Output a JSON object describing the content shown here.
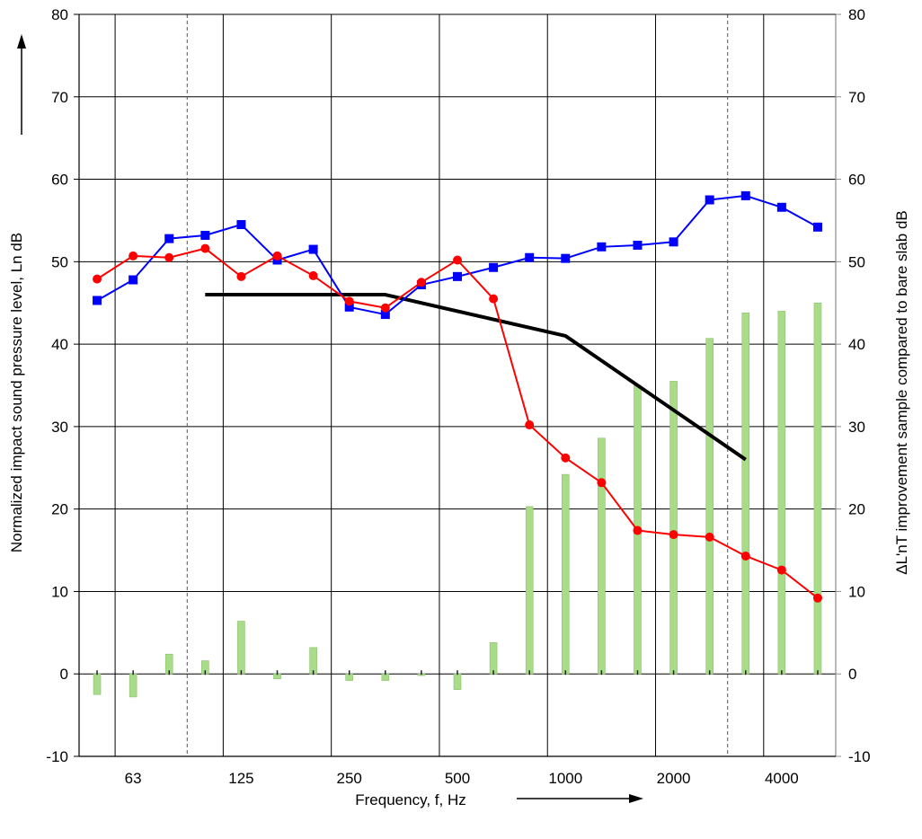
{
  "chart_data": {
    "type": "line+bar",
    "categories": [
      "50",
      "63",
      "80",
      "100",
      "125",
      "160",
      "200",
      "250",
      "315",
      "400",
      "500",
      "630",
      "800",
      "1000",
      "1250",
      "1600",
      "2000",
      "2500",
      "3150",
      "4000",
      "5000"
    ],
    "x_tick_labels": [
      "63",
      "125",
      "250",
      "500",
      "1000",
      "2000",
      "4000"
    ],
    "xlabel": "Frequency, f, Hz",
    "ylabel_left": "Normalized impact sound pressure level, Ln dB",
    "ylabel_right": "ΔL'nT improvement sample compared to bare slab dB",
    "ylim": [
      -10,
      80
    ],
    "y_ticks": [
      -10,
      0,
      10,
      20,
      30,
      40,
      50,
      60,
      70,
      80
    ],
    "grid": true,
    "series": [
      {
        "kind": "line",
        "color": "#0000ff",
        "marker": "square",
        "values": [
          45.3,
          47.8,
          52.8,
          53.2,
          54.5,
          50.2,
          51.5,
          44.5,
          43.6,
          47.2,
          48.2,
          49.3,
          50.5,
          50.4,
          51.8,
          52,
          52.4,
          57.5,
          58,
          56.6,
          54.2
        ]
      },
      {
        "kind": "line",
        "color": "#ff0000",
        "marker": "circle",
        "values": [
          47.9,
          50.7,
          50.5,
          51.6,
          48.2,
          50.7,
          48.3,
          45.2,
          44.4,
          47.5,
          50.2,
          45.5,
          30.2,
          26.2,
          23.2,
          17.4,
          16.9,
          16.6,
          14.3,
          12.6,
          9.2
        ]
      },
      {
        "kind": "reference-line",
        "color": "#000000",
        "points": [
          [
            "100",
            46
          ],
          [
            "315",
            46
          ],
          [
            "1000",
            41
          ],
          [
            "3150",
            26
          ]
        ]
      },
      {
        "kind": "bar",
        "color": "#a8dc88",
        "values": [
          -2.5,
          -2.8,
          2.4,
          1.6,
          6.4,
          -0.6,
          3.2,
          -0.8,
          -0.8,
          -0.2,
          -1.9,
          3.8,
          20.3,
          24.2,
          28.6,
          35,
          35.5,
          40.7,
          43.8,
          44,
          45
        ]
      }
    ]
  }
}
